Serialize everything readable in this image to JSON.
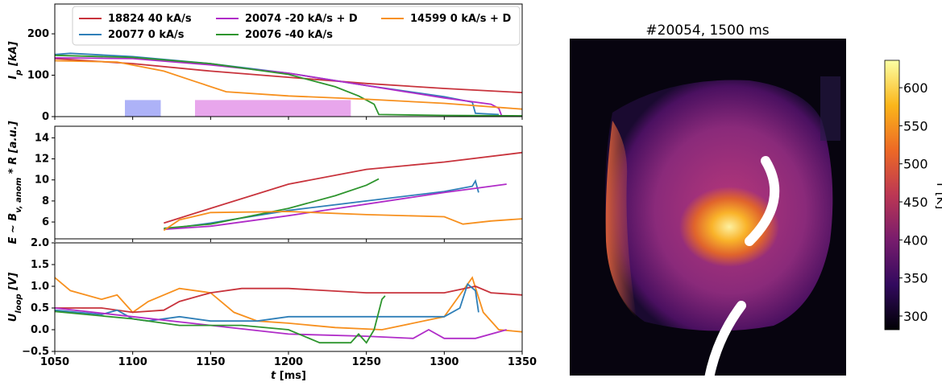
{
  "chart_data": [
    {
      "type": "line",
      "ylabel": [
        {
          "text": "I"
        },
        {
          "text": "p",
          "sub": true
        },
        {
          "text": " [kA]"
        }
      ],
      "ylim": [
        0,
        272
      ],
      "yticks": [
        0,
        100,
        200
      ],
      "legend": "upper right",
      "spans": [
        {
          "x0": 1095,
          "x1": 1118,
          "y1": 40,
          "color": "#adb2f7"
        },
        {
          "x0": 1140,
          "x1": 1240,
          "y1": 40,
          "color": "#e8a6ec"
        }
      ],
      "series": [
        {
          "name": "18824 40 kA/s",
          "color": "#c8333c",
          "x": [
            1050,
            1100,
            1150,
            1200,
            1250,
            1300,
            1350
          ],
          "values": [
            140,
            128,
            110,
            95,
            80,
            68,
            58
          ]
        },
        {
          "name": "20077 0 kA/s",
          "color": "#2f7fb8",
          "x": [
            1050,
            1060,
            1100,
            1150,
            1200,
            1250,
            1300,
            1318,
            1320,
            1335
          ],
          "values": [
            150,
            153,
            145,
            128,
            105,
            75,
            48,
            35,
            8,
            5
          ]
        },
        {
          "name": "20074 -20 kA/s + D",
          "color": "#b02cc8",
          "x": [
            1050,
            1100,
            1150,
            1200,
            1250,
            1300,
            1330,
            1335,
            1337
          ],
          "values": [
            142,
            140,
            125,
            105,
            75,
            45,
            30,
            20,
            0
          ]
        },
        {
          "name": "20076 -40 kA/s",
          "color": "#2e952e",
          "x": [
            1050,
            1100,
            1150,
            1200,
            1230,
            1245,
            1255,
            1258,
            1300,
            1350
          ],
          "values": [
            148,
            143,
            128,
            102,
            72,
            50,
            30,
            5,
            3,
            2
          ]
        },
        {
          "name": "14599 0 kA/s + D",
          "color": "#f7901e",
          "x": [
            1050,
            1090,
            1120,
            1140,
            1160,
            1200,
            1250,
            1300,
            1350
          ],
          "values": [
            135,
            132,
            110,
            85,
            60,
            50,
            42,
            32,
            18
          ]
        }
      ]
    },
    {
      "type": "line",
      "ylabel": [
        {
          "text": "E ∼ B"
        },
        {
          "text": "v, anom",
          "sub": true
        },
        {
          "text": " * R [a.u.]"
        }
      ],
      "ylim": [
        4.4,
        15.1
      ],
      "yticks": [
        6,
        8,
        10,
        12,
        14
      ],
      "series": [
        {
          "color": "#c8333c",
          "x": [
            1120,
            1150,
            1200,
            1250,
            1300,
            1350
          ],
          "values": [
            5.9,
            7.3,
            9.6,
            11.0,
            11.7,
            12.6
          ]
        },
        {
          "color": "#2f7fb8",
          "x": [
            1120,
            1150,
            1200,
            1250,
            1300,
            1318,
            1320,
            1322
          ],
          "values": [
            5.3,
            5.9,
            7.1,
            8.0,
            8.9,
            9.4,
            9.9,
            8.8
          ]
        },
        {
          "color": "#b02cc8",
          "x": [
            1120,
            1150,
            1200,
            1250,
            1300,
            1340
          ],
          "values": [
            5.3,
            5.6,
            6.6,
            7.7,
            8.8,
            9.6
          ]
        },
        {
          "color": "#2e952e",
          "x": [
            1120,
            1150,
            1200,
            1230,
            1250,
            1258
          ],
          "values": [
            5.4,
            5.8,
            7.3,
            8.5,
            9.5,
            10.1
          ]
        },
        {
          "color": "#f7901e",
          "x": [
            1120,
            1130,
            1150,
            1200,
            1250,
            1300,
            1312,
            1330,
            1350
          ],
          "values": [
            5.2,
            6.2,
            6.9,
            7.0,
            6.7,
            6.5,
            5.8,
            6.1,
            6.3
          ]
        }
      ]
    },
    {
      "type": "line",
      "ylabel": [
        {
          "text": "U"
        },
        {
          "text": "loop",
          "sub": true
        },
        {
          "text": " [V]"
        }
      ],
      "xlabel": [
        {
          "text": "t",
          "italic": true
        },
        {
          "text": " [ms]"
        }
      ],
      "xlim": [
        1050,
        1350
      ],
      "xticks": [
        1050,
        1100,
        1150,
        1200,
        1250,
        1300,
        1350
      ],
      "ylim": [
        -0.5,
        2.0
      ],
      "yticks": [
        {
          "value": -0.5,
          "label": "−0.5"
        },
        {
          "value": 0,
          "label": "0.0"
        },
        {
          "value": 0.5,
          "label": "0.5"
        },
        {
          "value": 1,
          "label": "1.0"
        },
        {
          "value": 1.5,
          "label": "1.5"
        },
        {
          "value": 2,
          "label": "2.0"
        }
      ],
      "series": [
        {
          "color": "#f7901e",
          "x": [
            1050,
            1060,
            1080,
            1090,
            1100,
            1110,
            1130,
            1150,
            1165,
            1180,
            1200,
            1230,
            1260,
            1300,
            1312,
            1318,
            1325,
            1335,
            1350
          ],
          "values": [
            1.2,
            0.9,
            0.7,
            0.8,
            0.4,
            0.65,
            0.95,
            0.85,
            0.4,
            0.2,
            0.15,
            0.05,
            0.0,
            0.3,
            0.9,
            1.2,
            0.4,
            0.0,
            -0.05
          ]
        },
        {
          "color": "#c8333c",
          "x": [
            1050,
            1080,
            1100,
            1120,
            1130,
            1150,
            1170,
            1200,
            1250,
            1300,
            1320,
            1330,
            1350
          ],
          "values": [
            0.5,
            0.5,
            0.4,
            0.45,
            0.65,
            0.85,
            0.95,
            0.95,
            0.85,
            0.85,
            1.0,
            0.85,
            0.8
          ]
        },
        {
          "color": "#2f7fb8",
          "x": [
            1050,
            1080,
            1090,
            1100,
            1110,
            1130,
            1150,
            1180,
            1200,
            1250,
            1300,
            1310,
            1315,
            1320,
            1322
          ],
          "values": [
            0.45,
            0.35,
            0.45,
            0.25,
            0.2,
            0.3,
            0.2,
            0.2,
            0.3,
            0.3,
            0.3,
            0.5,
            1.05,
            0.9,
            0.4
          ]
        },
        {
          "color": "#b02cc8",
          "x": [
            1050,
            1100,
            1150,
            1200,
            1250,
            1280,
            1290,
            1300,
            1320,
            1340
          ],
          "values": [
            0.5,
            0.3,
            0.1,
            -0.1,
            -0.15,
            -0.2,
            0.0,
            -0.2,
            -0.2,
            0.0
          ]
        },
        {
          "color": "#2e952e",
          "x": [
            1050,
            1100,
            1130,
            1170,
            1200,
            1220,
            1240,
            1245,
            1250,
            1255,
            1260,
            1262
          ],
          "values": [
            0.42,
            0.25,
            0.1,
            0.1,
            0.0,
            -0.3,
            -0.3,
            -0.1,
            -0.3,
            0.0,
            0.7,
            0.78
          ]
        }
      ]
    },
    {
      "type": "heatmap",
      "title": "#20054, 1500 ms",
      "colormap": "inferno",
      "colorbar_label": "T [K]",
      "clim": [
        282,
        636
      ],
      "cticks": [
        300,
        350,
        400,
        450,
        500,
        550,
        600
      ]
    }
  ]
}
